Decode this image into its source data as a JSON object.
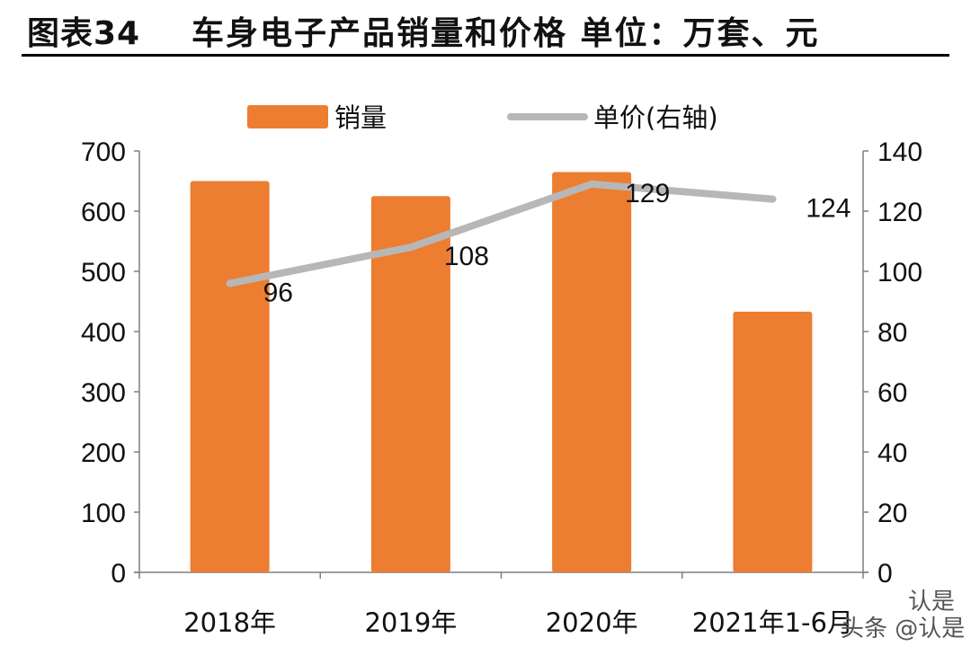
{
  "header": {
    "figure_label": "图表34",
    "title": "车身电子产品销量和价格  单位：万套、元"
  },
  "watermark": {
    "top": "认是",
    "bottom": "头条 @认是"
  },
  "colors": {
    "bar": "#ED7D31",
    "line": "#B7B7B7"
  },
  "chart_data": {
    "type": "bar",
    "categories": [
      "2018年",
      "2019年",
      "2020年",
      "2021年1-6月"
    ],
    "series": [
      {
        "name": "销量",
        "type": "bar",
        "axis": "left",
        "values": [
          650,
          625,
          665,
          433
        ]
      },
      {
        "name": "单价(右轴)",
        "type": "line",
        "axis": "right",
        "values": [
          96,
          108,
          129,
          124
        ],
        "labels": [
          "96",
          "108",
          "129",
          "124"
        ]
      }
    ],
    "y_left": {
      "min": 0,
      "max": 700,
      "ticks": [
        "0",
        "100",
        "200",
        "300",
        "400",
        "500",
        "600",
        "700"
      ]
    },
    "y_right": {
      "min": 0,
      "max": 140,
      "ticks": [
        "0",
        "20",
        "40",
        "60",
        "80",
        "100",
        "120",
        "140"
      ]
    },
    "legend_position": "top",
    "grid": false
  }
}
